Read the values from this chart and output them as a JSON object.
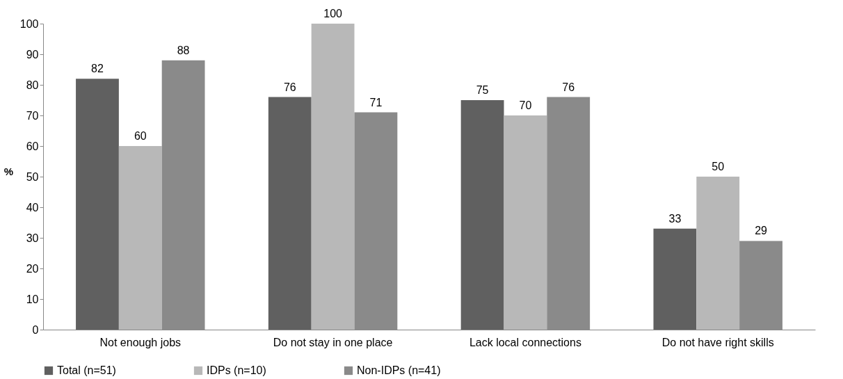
{
  "chart_data": {
    "type": "bar",
    "ylabel": "%",
    "categories": [
      "Not enough jobs",
      "Do not stay in one place",
      "Lack local connections",
      "Do not have right skills"
    ],
    "series": [
      {
        "name": "Total (n=51)",
        "color": "#606060",
        "values": [
          82,
          76,
          75,
          33
        ]
      },
      {
        "name": "IDPs (n=10)",
        "color": "#b8b8b8",
        "values": [
          60,
          100,
          70,
          50
        ]
      },
      {
        "name": "Non-IDPs (n=41)",
        "color": "#8a8a8a",
        "values": [
          88,
          71,
          76,
          29
        ]
      }
    ],
    "ylim": [
      0,
      100
    ],
    "yticks": [
      0,
      10,
      20,
      30,
      40,
      50,
      60,
      70,
      80,
      90,
      100
    ],
    "grid": false,
    "legend": "bottom",
    "data_labels": true
  }
}
